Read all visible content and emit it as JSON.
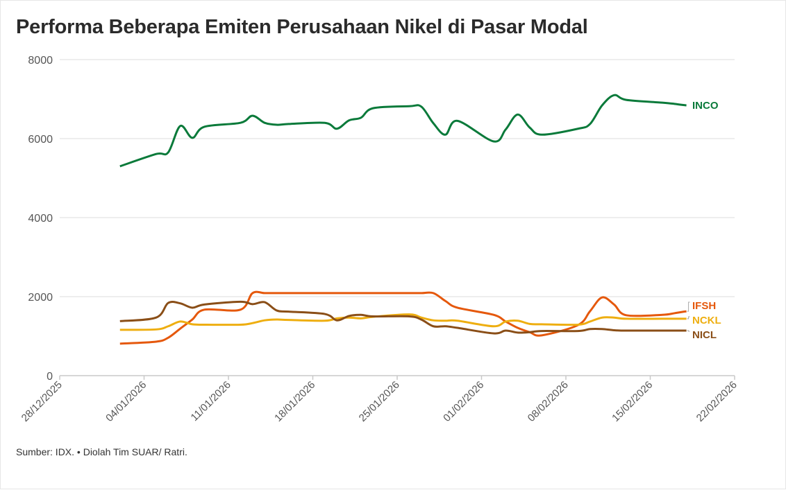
{
  "title": "Performa Beberapa Emiten Perusahaan Nikel di Pasar Modal",
  "source": "Sumber: IDX. • Diolah Tim SUAR/ Ratri.",
  "chart_data": {
    "type": "line",
    "title": "Performa Beberapa Emiten Perusahaan Nikel di Pasar Modal",
    "xlabel": "",
    "ylabel": "",
    "ylim": [
      0,
      8000
    ],
    "yticks": [
      "0",
      "2000",
      "4000",
      "6000",
      "8000"
    ],
    "xlim": [
      "2025-12-28",
      "2026-02-22"
    ],
    "xticks": [
      "28/12/2025",
      "04/01/2026",
      "11/01/2026",
      "18/01/2026",
      "25/01/2026",
      "01/02/2026",
      "08/02/2026",
      "15/02/2026",
      "22/02/2026"
    ],
    "grid": "horizontal",
    "legend": "direct labels at line ends (right)",
    "x": [
      "2026-01-02",
      "2026-01-05",
      "2026-01-06",
      "2026-01-07",
      "2026-01-08",
      "2026-01-09",
      "2026-01-12",
      "2026-01-13",
      "2026-01-14",
      "2026-01-15",
      "2026-01-16",
      "2026-01-19",
      "2026-01-20",
      "2026-01-21",
      "2026-01-22",
      "2026-01-23",
      "2026-01-26",
      "2026-01-27",
      "2026-01-28",
      "2026-01-29",
      "2026-01-30",
      "2026-02-02",
      "2026-02-03",
      "2026-02-04",
      "2026-02-05",
      "2026-02-06",
      "2026-02-09",
      "2026-02-10",
      "2026-02-11",
      "2026-02-12",
      "2026-02-13",
      "2026-02-16",
      "2026-02-17",
      "2026-02-18"
    ],
    "series": [
      {
        "name": "INCO",
        "color": "#0a7a3a",
        "values": [
          5300,
          5610,
          5650,
          6320,
          6020,
          6300,
          6400,
          6580,
          6400,
          6350,
          6370,
          6400,
          6250,
          6460,
          6530,
          6770,
          6820,
          6810,
          6390,
          6100,
          6450,
          5930,
          6230,
          6610,
          6280,
          6100,
          6250,
          6370,
          6840,
          7100,
          6980,
          6910,
          6880,
          6840
        ]
      },
      {
        "name": "IFSH",
        "color": "#e5580c",
        "values": [
          810,
          860,
          960,
          1190,
          1420,
          1670,
          1670,
          2090,
          2090,
          2090,
          2090,
          2090,
          2090,
          2090,
          2090,
          2090,
          2090,
          2090,
          2090,
          1890,
          1720,
          1540,
          1370,
          1210,
          1100,
          1020,
          1280,
          1630,
          1980,
          1800,
          1530,
          1540,
          1580,
          1630
        ]
      },
      {
        "name": "NCKL",
        "color": "#eeae10",
        "values": [
          1160,
          1170,
          1250,
          1370,
          1300,
          1290,
          1290,
          1330,
          1400,
          1420,
          1410,
          1390,
          1450,
          1470,
          1450,
          1490,
          1550,
          1470,
          1400,
          1390,
          1390,
          1250,
          1370,
          1390,
          1310,
          1300,
          1290,
          1370,
          1470,
          1470,
          1440,
          1440,
          1440,
          1440
        ]
      },
      {
        "name": "NICL",
        "color": "#8a4e17",
        "values": [
          1380,
          1470,
          1840,
          1830,
          1720,
          1800,
          1870,
          1810,
          1860,
          1650,
          1620,
          1560,
          1400,
          1510,
          1540,
          1500,
          1500,
          1420,
          1250,
          1250,
          1210,
          1070,
          1140,
          1090,
          1100,
          1130,
          1130,
          1180,
          1180,
          1150,
          1140,
          1140,
          1140,
          1140
        ]
      }
    ]
  }
}
